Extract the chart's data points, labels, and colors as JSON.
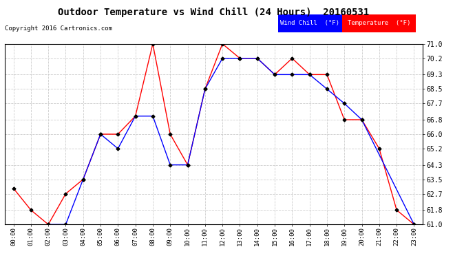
{
  "title": "Outdoor Temperature vs Wind Chill (24 Hours)  20160531",
  "copyright": "Copyright 2016 Cartronics.com",
  "background_color": "#ffffff",
  "grid_color": "#cccccc",
  "x_labels": [
    "00:00",
    "01:00",
    "02:00",
    "03:00",
    "04:00",
    "05:00",
    "06:00",
    "07:00",
    "08:00",
    "09:00",
    "10:00",
    "11:00",
    "12:00",
    "13:00",
    "14:00",
    "15:00",
    "16:00",
    "17:00",
    "18:00",
    "19:00",
    "20:00",
    "21:00",
    "22:00",
    "23:00"
  ],
  "temperature": [
    63.0,
    61.8,
    61.0,
    62.7,
    63.5,
    66.0,
    66.0,
    67.0,
    71.0,
    66.0,
    64.3,
    68.5,
    71.0,
    70.2,
    70.2,
    69.3,
    70.2,
    69.3,
    69.3,
    66.8,
    66.8,
    65.2,
    61.8,
    61.0
  ],
  "wind_chill": [
    null,
    null,
    61.0,
    61.0,
    63.5,
    66.0,
    65.2,
    67.0,
    67.0,
    64.3,
    64.3,
    68.5,
    70.2,
    70.2,
    70.2,
    69.3,
    69.3,
    69.3,
    68.5,
    67.7,
    66.8,
    null,
    null,
    61.0
  ],
  "temp_color": "#ff0000",
  "wind_chill_color": "#0000ff",
  "ylim": [
    61.0,
    71.0
  ],
  "yticks": [
    61.0,
    61.8,
    62.7,
    63.5,
    64.3,
    65.2,
    66.0,
    66.8,
    67.7,
    68.5,
    69.3,
    70.2,
    71.0
  ],
  "legend_wind_chill_bg": "#0000ff",
  "legend_temp_bg": "#ff0000",
  "legend_text_color": "#ffffff",
  "marker_color": "#000000"
}
